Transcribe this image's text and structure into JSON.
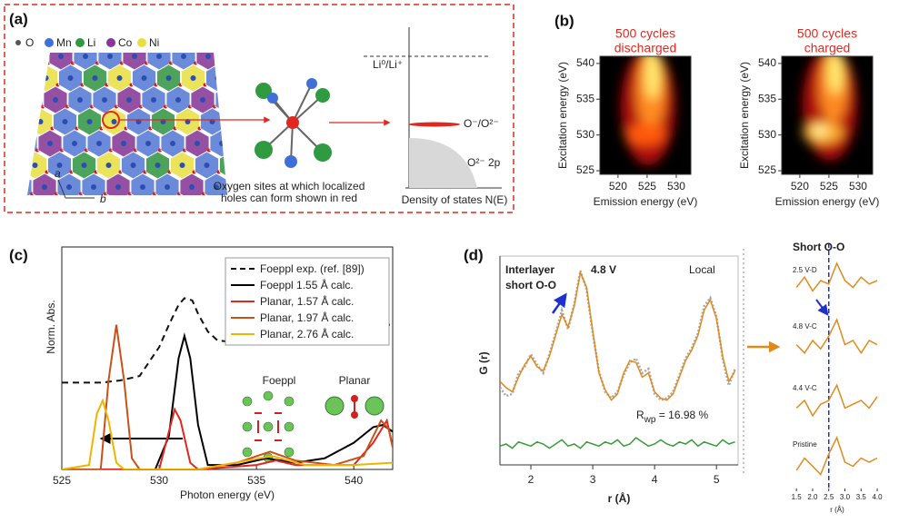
{
  "panels": {
    "a": "(a)",
    "b": "(b)",
    "c": "(c)",
    "d": "(d)"
  },
  "panel_a": {
    "legend": [
      "O",
      "Mn",
      "Li",
      "Co",
      "Ni"
    ],
    "legend_colors": [
      "#555555",
      "#3f6fd8",
      "#2f9a3f",
      "#8a3599",
      "#e8df3c"
    ],
    "axis_a": "a",
    "axis_b": "b",
    "caption": [
      "Oxygen sites at which localized",
      "holes can form shown in red"
    ],
    "dos": {
      "level": "Li⁰/Li⁺",
      "hole_band": "O⁻/O²⁻",
      "band": "O²⁻ 2p",
      "xlabel": "Density of states N(E)"
    }
  },
  "chart_data": [
    {
      "type": "heatmap",
      "title_lines": [
        "500 cycles",
        "discharged"
      ],
      "xlabel": "Emission energy (eV)",
      "ylabel": "Excitation energy (eV)",
      "xlim": [
        516.9,
        532.5
      ],
      "xticks": [
        520,
        525,
        530
      ],
      "ylim": [
        524.5,
        541
      ],
      "yticks": [
        525,
        530,
        535,
        540
      ]
    },
    {
      "type": "heatmap",
      "title_lines": [
        "500 cycles",
        "charged"
      ],
      "xlabel": "Emission energy (eV)",
      "ylabel": "Excitation energy (eV)",
      "xlim": [
        516.9,
        532.5
      ],
      "xticks": [
        520,
        525,
        530
      ],
      "ylim": [
        524.5,
        541
      ],
      "yticks": [
        525,
        530,
        535,
        540
      ]
    },
    {
      "type": "line",
      "xlabel": "Photon energy (eV)",
      "ylabel": "Norm. Abs.",
      "xlim": [
        525,
        542
      ],
      "xticks": [
        525,
        530,
        535,
        540
      ],
      "ylim": [
        0,
        1
      ],
      "legend": "upper right",
      "annotations": [
        "Foeppl",
        "Planar"
      ],
      "series": [
        {
          "name": "Foeppl exp. (ref. [89])",
          "color": "#111111",
          "dashed": true,
          "x": [
            525,
            526,
            527,
            528,
            529,
            530,
            530.5,
            531,
            531.3,
            531.7,
            532,
            532.5,
            533,
            534,
            535,
            536,
            537,
            538,
            539,
            540,
            541,
            542
          ],
          "values": [
            0.39,
            0.39,
            0.39,
            0.4,
            0.42,
            0.55,
            0.65,
            0.74,
            0.77,
            0.76,
            0.7,
            0.62,
            0.58,
            0.57,
            0.59,
            0.61,
            0.62,
            0.63,
            0.64,
            0.64,
            0.65,
            0.65
          ]
        },
        {
          "name": "Foeppl 1.55 Å calc.",
          "color": "#000000",
          "dashed": false,
          "x": [
            525,
            529.8,
            530.5,
            531,
            531.3,
            531.6,
            532,
            532.5,
            534,
            535.5,
            537,
            538.5,
            540,
            541,
            541.5,
            542
          ],
          "values": [
            0,
            0,
            0.15,
            0.5,
            0.6,
            0.5,
            0.2,
            0.02,
            0.02,
            0.05,
            0.03,
            0.05,
            0.12,
            0.19,
            0.2,
            0.17
          ]
        },
        {
          "name": "Planar, 1.57 Å calc.",
          "color": "#e0281e",
          "dashed": false,
          "x": [
            525,
            530,
            530.5,
            530.8,
            531.1,
            531.6,
            532,
            535,
            536,
            537,
            540,
            541,
            541.7,
            542
          ],
          "values": [
            0,
            0,
            0.17,
            0.27,
            0.22,
            0.03,
            0,
            0.02,
            0.04,
            0.02,
            0.02,
            0.12,
            0.22,
            0.1
          ]
        },
        {
          "name": "Planar, 1.97 Å calc.",
          "color": "#c9501a",
          "dashed": false,
          "x": [
            525,
            527,
            527.4,
            527.8,
            528.2,
            528.6,
            529,
            532,
            534,
            535.7,
            537,
            539,
            540.5,
            541.4,
            541.8,
            542
          ],
          "values": [
            0,
            0,
            0.4,
            0.65,
            0.4,
            0.05,
            0,
            0,
            0.03,
            0.08,
            0.04,
            0.02,
            0.06,
            0.22,
            0.18,
            0.1
          ]
        },
        {
          "name": "Planar, 2.76 Å calc.",
          "color": "#f0b400",
          "dashed": false,
          "x": [
            525,
            526.4,
            526.8,
            527.1,
            527.4,
            527.8,
            528.2,
            532,
            535.8,
            537.5,
            540,
            542
          ],
          "values": [
            0,
            0.02,
            0.25,
            0.31,
            0.22,
            0.03,
            0,
            0,
            0.06,
            0.02,
            0.02,
            0.03
          ]
        }
      ]
    },
    {
      "type": "line",
      "xlabel": "r (Å)",
      "ylabel": "G (r)",
      "xlim": [
        1.5,
        5.35
      ],
      "xticks": [
        2,
        3,
        4,
        5
      ],
      "ylim": [
        0,
        1
      ],
      "annotations": {
        "peak": [
          "Interlayer",
          "short O-O"
        ],
        "voltage": "4.8 V",
        "local": "Local",
        "rwp": [
          "R",
          "wp",
          " = 16.98 %"
        ]
      },
      "x": [
        1.5,
        1.6,
        1.7,
        1.8,
        1.9,
        2.0,
        2.1,
        2.2,
        2.3,
        2.4,
        2.5,
        2.6,
        2.7,
        2.8,
        2.9,
        3.0,
        3.1,
        3.2,
        3.3,
        3.4,
        3.5,
        3.6,
        3.7,
        3.8,
        3.9,
        4.0,
        4.1,
        4.2,
        4.3,
        4.4,
        4.5,
        4.6,
        4.7,
        4.8,
        4.9,
        5.0,
        5.1,
        5.2,
        5.3
      ],
      "series": [
        {
          "color": "#a8a8a8",
          "dotted": true,
          "values": [
            0.37,
            0.33,
            0.34,
            0.44,
            0.47,
            0.53,
            0.48,
            0.44,
            0.53,
            0.63,
            0.74,
            0.65,
            0.77,
            0.93,
            0.84,
            0.63,
            0.45,
            0.35,
            0.32,
            0.35,
            0.43,
            0.49,
            0.51,
            0.44,
            0.46,
            0.34,
            0.31,
            0.32,
            0.35,
            0.43,
            0.51,
            0.56,
            0.63,
            0.76,
            0.8,
            0.71,
            0.51,
            0.38,
            0.46
          ]
        },
        {
          "color": "#e08a1e",
          "dotted": false,
          "values": [
            0.4,
            0.37,
            0.35,
            0.42,
            0.48,
            0.52,
            0.47,
            0.45,
            0.52,
            0.62,
            0.72,
            0.66,
            0.76,
            0.92,
            0.85,
            0.64,
            0.44,
            0.36,
            0.31,
            0.34,
            0.44,
            0.5,
            0.49,
            0.42,
            0.44,
            0.35,
            0.32,
            0.31,
            0.34,
            0.42,
            0.5,
            0.55,
            0.62,
            0.74,
            0.79,
            0.7,
            0.52,
            0.4,
            0.45
          ]
        },
        {
          "color": "#3a9a3a",
          "dotted": false,
          "values": [
            0.09,
            0.1,
            0.08,
            0.11,
            0.1,
            0.09,
            0.11,
            0.1,
            0.08,
            0.1,
            0.12,
            0.09,
            0.1,
            0.08,
            0.11,
            0.1,
            0.09,
            0.11,
            0.1,
            0.12,
            0.09,
            0.1,
            0.13,
            0.11,
            0.09,
            0.1,
            0.12,
            0.1,
            0.09,
            0.11,
            0.1,
            0.12,
            0.09,
            0.11,
            0.1,
            0.09,
            0.12,
            0.1,
            0.11
          ]
        }
      ]
    },
    {
      "type": "stacked-lines",
      "title": "Short O-O",
      "xlabel": "r (Å)",
      "xlim": [
        1.27,
        4.28
      ],
      "marker_x": 2.5,
      "xticks": [
        1.5,
        {
          "value": 2,
          "label": "2.0"
        },
        2.5,
        {
          "value": 3,
          "label": "3.0"
        },
        3.5,
        {
          "value": 4,
          "label": "4.0"
        }
      ],
      "x": [
        1.5,
        1.75,
        2.0,
        2.25,
        2.5,
        2.75,
        3.0,
        3.25,
        3.5,
        3.75,
        4.0
      ],
      "series": [
        {
          "name": "2.5 V-D",
          "color": "#e08a1e",
          "values": [
            0.3,
            0.6,
            0.2,
            0.5,
            0.4,
            1.0,
            0.5,
            0.3,
            0.6,
            0.4,
            0.5
          ]
        },
        {
          "name": "4.8 V-C",
          "color": "#e08a1e",
          "values": [
            0.4,
            0.2,
            0.5,
            0.3,
            0.6,
            1.0,
            0.4,
            0.5,
            0.2,
            0.5,
            0.4
          ]
        },
        {
          "name": "4.4 V-C",
          "color": "#e08a1e",
          "values": [
            0.3,
            0.5,
            0.1,
            0.4,
            0.5,
            0.9,
            0.3,
            0.4,
            0.5,
            0.3,
            0.6
          ]
        },
        {
          "name": "Pristine",
          "color": "#e08a1e",
          "values": [
            0.2,
            0.5,
            0.3,
            0.1,
            0.6,
            1.0,
            0.4,
            0.3,
            0.5,
            0.4,
            0.5
          ]
        }
      ]
    }
  ]
}
